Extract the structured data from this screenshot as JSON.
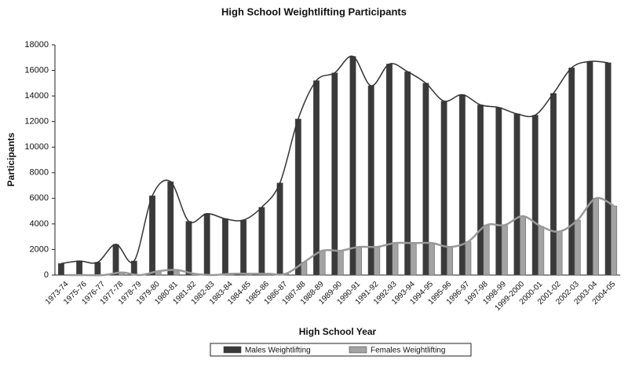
{
  "chart_data": {
    "type": "bar",
    "title": "High School Weightlifting Participants",
    "xlabel": "High School Year",
    "ylabel": "Participants",
    "categories": [
      "1973-74",
      "1975-76",
      "1976-77",
      "1977-78",
      "1978-79",
      "1979-80",
      "1980-81",
      "1981-82",
      "1982-83",
      "1983-84",
      "1984-85",
      "1985-86",
      "1986-87",
      "1987-88",
      "1988-89",
      "1989-90",
      "1990-91",
      "1991-92",
      "1992-93",
      "1993-94",
      "1994-95",
      "1995-96",
      "1996-97",
      "1997-98",
      "1998-99",
      "1999-2000",
      "2000-01",
      "2001-02",
      "2002-03",
      "2003-04",
      "2004-05"
    ],
    "series": [
      {
        "name": "Males Weightlifting",
        "color": "#3a3a3a",
        "values": [
          900,
          1100,
          1000,
          2400,
          1100,
          6200,
          7300,
          4200,
          4800,
          4400,
          4300,
          5300,
          7200,
          12200,
          15200,
          15800,
          17100,
          14800,
          16500,
          15900,
          15000,
          13600,
          14100,
          13300,
          13100,
          12600,
          12500,
          14200,
          16200,
          16700,
          16600
        ]
      },
      {
        "name": "Females Weightlifting",
        "color": "#a3a3a3",
        "values": [
          0,
          0,
          0,
          200,
          0,
          300,
          400,
          100,
          0,
          100,
          100,
          100,
          100,
          1000,
          1900,
          1900,
          2200,
          2200,
          2500,
          2500,
          2500,
          2200,
          2600,
          3900,
          3900,
          4600,
          3800,
          3400,
          4300,
          6000,
          5400
        ]
      }
    ],
    "ylim": [
      0,
      18000
    ],
    "yticks": [
      0,
      2000,
      4000,
      6000,
      8000,
      10000,
      12000,
      14000,
      16000,
      18000
    ],
    "smooth_line": true,
    "legend": "bottom"
  }
}
